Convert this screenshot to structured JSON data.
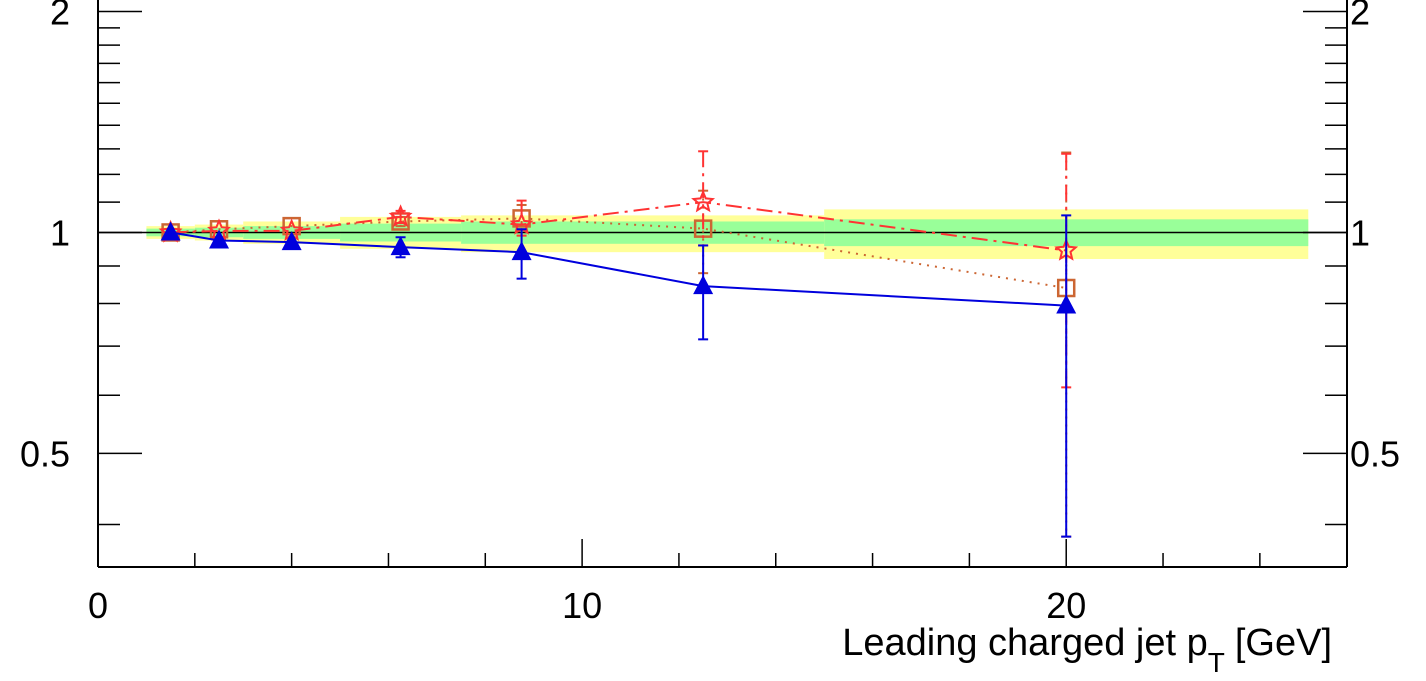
{
  "chart_data": {
    "type": "scatter",
    "title": "",
    "xlabel": "Leading charged jet p",
    "xlabel_sub": "T",
    "xlabel_unit": "[GeV]",
    "ylabel": "",
    "xlim": [
      0,
      25.8
    ],
    "ylim": [
      0.35,
      2.1
    ],
    "y_scale": "log",
    "x_tick_labels": [
      "0",
      "10",
      "20"
    ],
    "y_tick_labels": [
      "0.5",
      "1",
      "2"
    ],
    "reference_line": 1,
    "uncertainty_bands": {
      "x_edges": [
        1,
        2,
        3,
        5,
        7.5,
        15,
        25
      ],
      "outer_low": [
        0.98,
        0.975,
        0.965,
        0.95,
        0.94,
        0.92
      ],
      "outer_high": [
        1.02,
        1.025,
        1.035,
        1.05,
        1.055,
        1.075
      ],
      "inner_low": [
        0.988,
        0.985,
        0.98,
        0.972,
        0.965,
        0.958
      ],
      "inner_high": [
        1.012,
        1.015,
        1.02,
        1.028,
        1.035,
        1.042
      ],
      "outer_color": "#ffff99",
      "inner_color": "#99ff99"
    },
    "series": [
      {
        "marker": "triangle",
        "color": "#0000dd",
        "line": "solid",
        "x": [
          1.5,
          2.5,
          4.0,
          6.25,
          8.75,
          12.5,
          20.0
        ],
        "y": [
          1.0,
          0.975,
          0.97,
          0.955,
          0.94,
          0.845,
          0.795
        ],
        "err_low": [
          1.0,
          0.975,
          0.97,
          0.925,
          0.865,
          0.715,
          0.385
        ],
        "err_high": [
          1.0,
          0.975,
          0.97,
          0.985,
          1.01,
          0.96,
          1.055
        ]
      },
      {
        "marker": "open-square",
        "color": "#cc6633",
        "line": "dotted",
        "x": [
          1.5,
          2.5,
          4.0,
          6.25,
          8.75,
          12.5,
          20.0
        ],
        "y": [
          1.0,
          1.01,
          1.02,
          1.035,
          1.045,
          1.012,
          0.84
        ],
        "err_low": [
          1.0,
          1.01,
          1.02,
          1.02,
          1.01,
          0.88,
          0.385
        ],
        "err_high": [
          1.0,
          1.01,
          1.02,
          1.05,
          1.09,
          1.14,
          1.285
        ]
      },
      {
        "marker": "star",
        "color": "#ff3333",
        "line": "dash-dot",
        "x": [
          1.5,
          2.5,
          4.0,
          6.25,
          8.75,
          12.5,
          20.0
        ],
        "y": [
          1.0,
          1.005,
          1.005,
          1.05,
          1.025,
          1.1,
          0.945
        ],
        "err_low": [
          1.0,
          1.005,
          1.005,
          1.03,
          0.99,
          0.96,
          0.615
        ],
        "err_high": [
          1.0,
          1.005,
          1.005,
          1.07,
          1.105,
          1.29,
          1.28
        ]
      }
    ]
  }
}
